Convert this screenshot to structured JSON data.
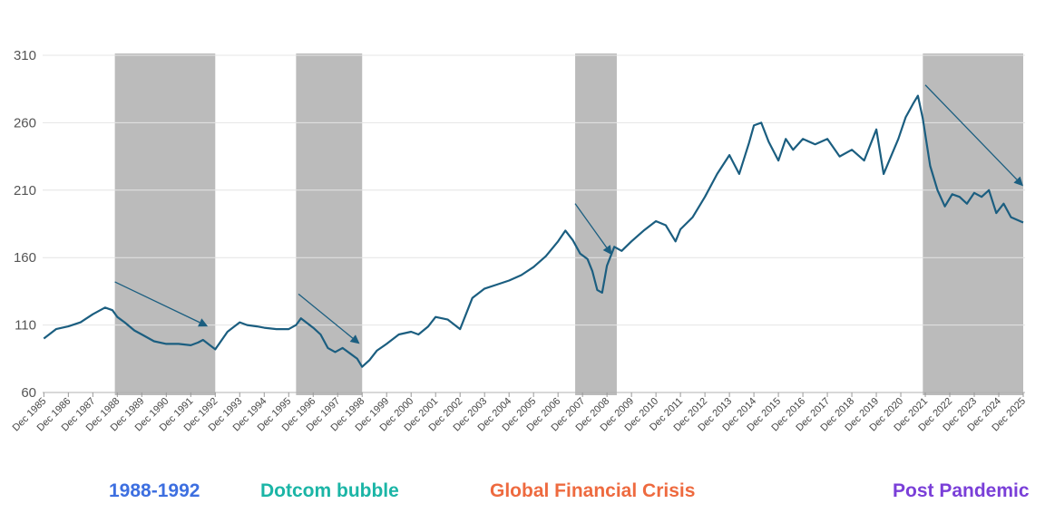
{
  "chart_data": {
    "type": "line",
    "title": "",
    "xlabel": "",
    "ylabel": "",
    "ylim": [
      60,
      310
    ],
    "yticks": [
      60,
      110,
      160,
      210,
      260,
      310
    ],
    "xticks": [
      "Dec 1985",
      "Dec 1986",
      "Dec 1987",
      "Dec 1988",
      "Dec 1989",
      "Dec 1990",
      "Dec 1991",
      "Dec 1992",
      "Dec 1993",
      "Dec 1994",
      "Dec 1995",
      "Dec 1996",
      "Dec 1997",
      "Dec 1998",
      "Dec 1999",
      "Dec 2000",
      "Dec 2001",
      "Dec 2002",
      "Dec 2003",
      "Dec 2004",
      "Dec 2005",
      "Dec 2006",
      "Dec 2007",
      "Dec 2008",
      "Dec 2009",
      "Dec 2010",
      "Dec 2011",
      "Dec 2012",
      "Dec 2013",
      "Dec 2014",
      "Dec 2015",
      "Dec 2016",
      "Dec 2017",
      "Dec 2018",
      "Dec 2019",
      "Dec 2020",
      "Dec 2021",
      "Dec 2022",
      "Dec 2023",
      "Dec 2024",
      "Dec 2025"
    ],
    "grid": true,
    "line_color": "#1b5e80",
    "shade_color": "#bbbbbb",
    "series": [
      {
        "x": [
          1986.0,
          1986.5,
          1987.0,
          1987.5,
          1988.0,
          1988.5,
          1988.8,
          1989.0,
          1989.3,
          1989.7,
          1990.0,
          1990.5,
          1991.0,
          1991.5,
          1992.0,
          1992.3,
          1992.5,
          1993.0,
          1993.5,
          1994.0,
          1994.3,
          1994.7,
          1995.0,
          1995.5,
          1996.0,
          1996.3,
          1996.5,
          1997.0,
          1997.3,
          1997.6,
          1997.9,
          1998.2,
          1998.5,
          1998.8,
          1999.0,
          1999.3,
          1999.6,
          2000.0,
          2000.5,
          2001.0,
          2001.3,
          2001.7,
          2002.0,
          2002.5,
          2003.0,
          2003.5,
          2004.0,
          2004.5,
          2005.0,
          2005.5,
          2006.0,
          2006.5,
          2007.0,
          2007.3,
          2007.6,
          2007.9,
          2008.2,
          2008.4,
          2008.6,
          2008.8,
          2009.0,
          2009.3,
          2009.6,
          2010.0,
          2010.5,
          2011.0,
          2011.4,
          2011.8,
          2012.0,
          2012.5,
          2013.0,
          2013.5,
          2014.0,
          2014.4,
          2014.8,
          2015.0,
          2015.3,
          2015.6,
          2016.0,
          2016.3,
          2016.6,
          2017.0,
          2017.5,
          2018.0,
          2018.5,
          2019.0,
          2019.5,
          2020.0,
          2020.3,
          2020.6,
          2020.9,
          2021.2,
          2021.5,
          2021.7,
          2021.9,
          2022.2,
          2022.5,
          2022.8,
          2023.1,
          2023.4,
          2023.7,
          2024.0,
          2024.3,
          2024.6,
          2024.9,
          2025.2,
          2025.5,
          2026.0
        ],
        "y": [
          100,
          107,
          109,
          112,
          118,
          123,
          121,
          116,
          112,
          106,
          103,
          98,
          96,
          96,
          95,
          97,
          99,
          92,
          105,
          112,
          110,
          109,
          108,
          107,
          107,
          110,
          115,
          108,
          103,
          93,
          90,
          93,
          89,
          85,
          79,
          84,
          91,
          96,
          103,
          105,
          103,
          109,
          116,
          114,
          107,
          130,
          137,
          140,
          143,
          147,
          153,
          161,
          172,
          180,
          173,
          163,
          159,
          150,
          136,
          134,
          154,
          168,
          165,
          172,
          180,
          187,
          184,
          172,
          181,
          190,
          205,
          222,
          236,
          222,
          245,
          258,
          260,
          246,
          232,
          248,
          240,
          248,
          244,
          248,
          235,
          240,
          232,
          255,
          222,
          235,
          248,
          264,
          274,
          280,
          263,
          228,
          210,
          198,
          207,
          205,
          200,
          208,
          205,
          210,
          193,
          200,
          190,
          186
        ]
      }
    ],
    "shaded_periods": [
      {
        "label": "1988-1992",
        "x_start": 1988.9,
        "x_end": 1993.0,
        "color": "#3d6fe0"
      },
      {
        "label": "Dotcom bubble",
        "x_start": 1996.3,
        "x_end": 1999.0,
        "color": "#1bb5a6"
      },
      {
        "label": "Global Financial Crisis",
        "x_start": 2007.7,
        "x_end": 2009.4,
        "color": "#ee6a3f"
      },
      {
        "label": "Post Pandemic",
        "x_start": 2021.9,
        "x_end": 2026.0,
        "color": "#7a3fd8"
      }
    ],
    "trend_arrows": [
      {
        "from": [
          1988.9,
          142
        ],
        "to": [
          1992.7,
          109
        ]
      },
      {
        "from": [
          1996.4,
          133
        ],
        "to": [
          1998.9,
          96
        ]
      },
      {
        "from": [
          2007.7,
          200
        ],
        "to": [
          2009.2,
          162
        ]
      },
      {
        "from": [
          2022.0,
          288
        ],
        "to": [
          2026.0,
          213
        ]
      }
    ]
  }
}
